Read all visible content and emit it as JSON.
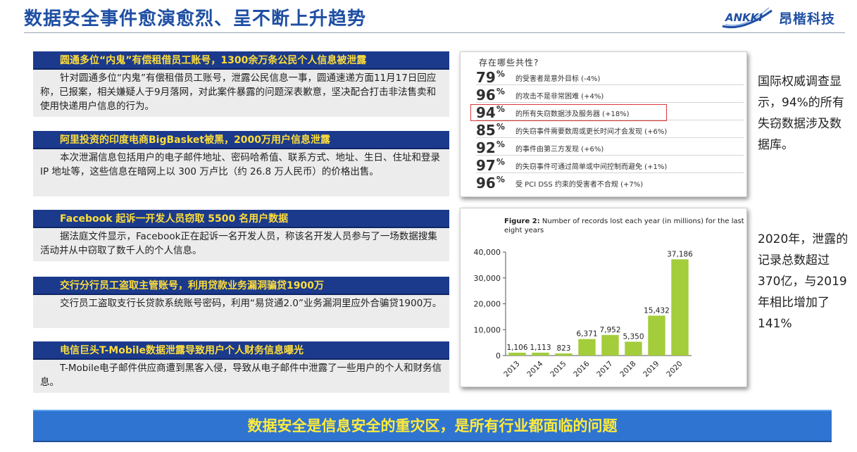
{
  "header": {
    "title": "数据安全事件愈演愈烈、呈不断上升趋势",
    "logo_en": "ANKKI",
    "logo_cn": "昂楷科技"
  },
  "news": [
    {
      "headline": "圆通多位“内鬼”有偿租借员工账号，1300余万条公民个人信息被泄露",
      "body": "针对圆通多位“内鬼”有偿租借员工账号，泄露公民信息一事，圆通速递方面11月17日回应称，已报案，相关嫌疑人于9月落网，对此案件暴露的问题深表歉意，坚决配合打击非法售卖和使用快递用户信息的行为。"
    },
    {
      "headline": "阿里投资的印度电商BigBasket被黑，2000万用户信息泄露",
      "body": "本次泄漏信息包括用户的电子邮件地址、密码哈希值、联系方式、地址、生日、住址和登录 IP 地址等，这些信息在暗网上以 300 万卢比（约 26.8 万人民币）的价格出售。"
    },
    {
      "headline": "Facebook 起诉一开发人员窃取 5500 名用户数据",
      "body": "据法庭文件显示，Facebook正在起诉一名开发人员，称该名开发人员参与了一场数据搜集活动并从中窃取了数千人的个人信息。"
    },
    {
      "headline": "交行分行员工盗取主管账号，利用贷款业务漏洞骗贷1900万",
      "body": "交行员工盗取支行长贷款系统账号密码，利用“易贷通2.0”业务漏洞里应外合骗贷1900万。"
    },
    {
      "headline": "电信巨头T-Mobile数据泄露导致用户个人财务信息曝光",
      "body": "T-Mobile电子邮件供应商遭到黑客入侵，导致从电子邮件中泄露了一些用户的个人和财务信息。"
    }
  ],
  "survey": {
    "heading": "存在哪些共性?",
    "highlight_color": "#d8393a",
    "items": [
      {
        "pct": "79",
        "sign": "%",
        "desc": "的受害者是意外目标 (-4%)"
      },
      {
        "pct": "96",
        "sign": "%",
        "desc": "的攻击不是非常困难 (+4%)"
      },
      {
        "pct": "94",
        "sign": "%",
        "desc": "的所有失窃数据涉及服务器 (+18%)",
        "highlighted": true
      },
      {
        "pct": "85",
        "sign": "%",
        "desc": "的失窃事件需要数周或更长时间才会发现 (+6%)"
      },
      {
        "pct": "92",
        "sign": "%",
        "desc": "的事件由第三方发现 (+6%)"
      },
      {
        "pct": "97",
        "sign": "%",
        "desc": "的失窃事件可通过简单或中间控制而避免 (+1%)"
      },
      {
        "pct": "96",
        "sign": "%",
        "desc": "受 PCI DSS 约束的受害者不合规 (+7%)"
      }
    ]
  },
  "side_text_1": "国际权威调查显示，94%的所有失窃数据涉及数据库。",
  "side_text_2": "2020年，泄露的记录总数超过 370亿，与2019年相比增加了141%",
  "chart_data": {
    "type": "bar",
    "title_bold": "Figure 2:",
    "title": "Number of records lost each year (in millions) for the last eight years",
    "categories": [
      "2013",
      "2014",
      "2015",
      "2016",
      "2017",
      "2018",
      "2019",
      "2020"
    ],
    "values": [
      1106,
      1113,
      823,
      6371,
      7952,
      5350,
      15432,
      37186
    ],
    "value_labels": [
      "1,106",
      "1,113",
      "823",
      "6,371",
      "7,952",
      "5,350",
      "15,432",
      "37,186"
    ],
    "yticks": [
      0,
      10000,
      20000,
      30000,
      40000
    ],
    "ytick_labels": [
      "0",
      "10,000",
      "20,000",
      "30,000",
      "40,000"
    ],
    "ylim": [
      0,
      40000
    ],
    "bar_color": "#a3cd3a",
    "grid": false,
    "legend": false
  },
  "footer": {
    "banner": "数据安全是信息安全的重灾区，是所有行业都面临的问题"
  }
}
